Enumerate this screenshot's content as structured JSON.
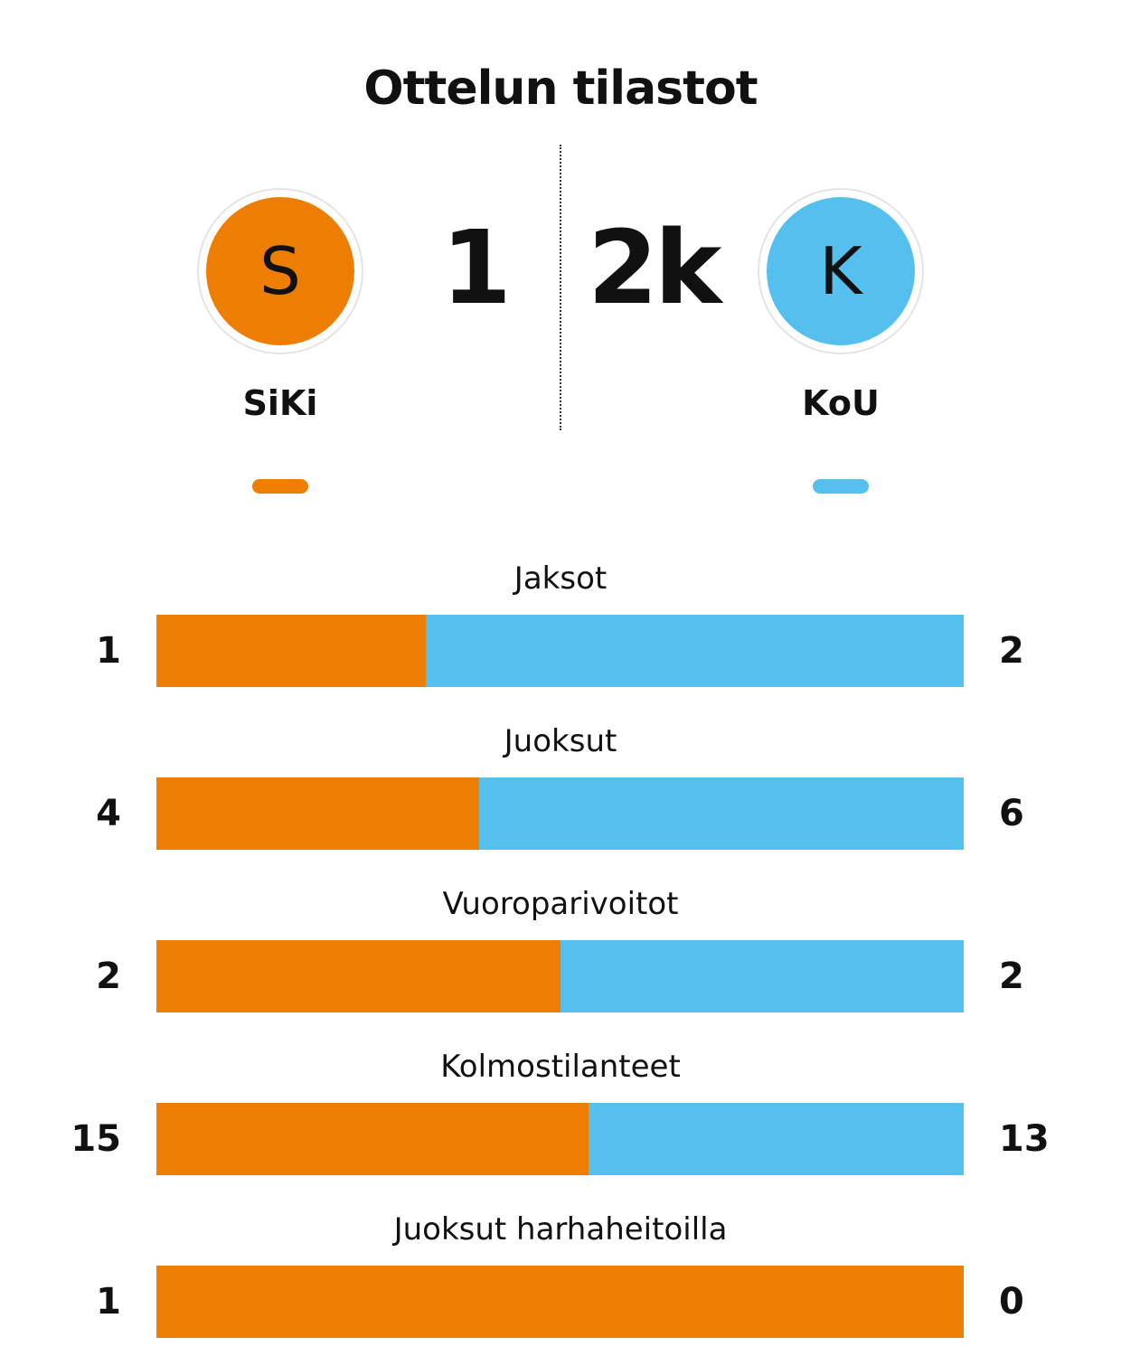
{
  "title": "Ottelun tilastot",
  "colors": {
    "home": "#EE7D03",
    "away": "#55C0EE"
  },
  "home": {
    "logo_letter": "S",
    "name": "SiKi",
    "score": "1"
  },
  "away": {
    "logo_letter": "K",
    "name": "KoU",
    "score": "2k"
  },
  "chart_data": {
    "type": "bar",
    "orientation": "horizontal-stacked-100",
    "categories": [
      "Jaksot",
      "Juoksut",
      "Vuoroparivoitot",
      "Kolmostilanteet",
      "Juoksut harhaheitoilla"
    ],
    "series": [
      {
        "name": "SiKi",
        "values": [
          1,
          4,
          2,
          15,
          1
        ]
      },
      {
        "name": "KoU",
        "values": [
          2,
          6,
          2,
          13,
          0
        ]
      }
    ]
  }
}
